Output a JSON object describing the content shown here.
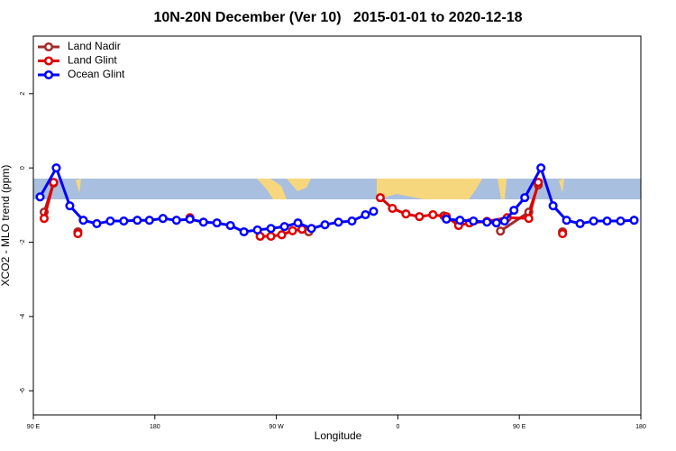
{
  "chart_data": {
    "type": "line",
    "title": "10N-20N December (Ver 10)   2015-01-01 to 2020-12-18",
    "xlabel": "Longitude",
    "ylabel": "XCO2 - MLO trend (ppm)",
    "xlim": [
      90,
      540
    ],
    "xticks": [
      {
        "value": 90,
        "label": "90 E"
      },
      {
        "value": 180,
        "label": "180"
      },
      {
        "value": 270,
        "label": "90 W"
      },
      {
        "value": 360,
        "label": "0"
      },
      {
        "value": 450,
        "label": "90 E"
      },
      {
        "value": 540,
        "label": "180"
      }
    ],
    "ylim": [
      -6.65,
      3.55
    ],
    "yticks": [
      -6,
      -4,
      -2,
      0,
      2
    ],
    "legend": "top-left",
    "series": [
      {
        "name": "Land Nadir",
        "color": "#a52a2a",
        "x": [
          98,
          105,
          null,
          123,
          null,
          294,
          null,
          394,
          null,
          436,
          457,
          464,
          null,
          482
        ],
        "values": [
          -1.19,
          -0.41,
          null,
          -1.72,
          null,
          -1.72,
          null,
          -1.29,
          null,
          -1.7,
          -1.19,
          -0.46,
          null,
          -1.72
        ]
      },
      {
        "name": "Land Glint",
        "color": "#e00000",
        "x": [
          98,
          105,
          null,
          123,
          null,
          206,
          null,
          258,
          266,
          274,
          282,
          289,
          null,
          347,
          356,
          366,
          376,
          386,
          396,
          405,
          413,
          426,
          441,
          457,
          464,
          null,
          482
        ],
        "values": [
          -1.36,
          -0.39,
          null,
          -1.77,
          null,
          -1.34,
          null,
          -1.84,
          -1.84,
          -1.8,
          -1.69,
          -1.65,
          null,
          -0.8,
          -1.09,
          -1.24,
          -1.31,
          -1.26,
          -1.31,
          -1.55,
          -1.48,
          -1.44,
          -1.34,
          -1.36,
          -0.39,
          null,
          -1.77
        ]
      },
      {
        "name": "Ocean Glint",
        "color": "#0000ff",
        "x": [
          95,
          107,
          117,
          127,
          137,
          147,
          157,
          167,
          176,
          186,
          196,
          206,
          216,
          226,
          236,
          246,
          256,
          266,
          276,
          286,
          296,
          306,
          316,
          326,
          336,
          342,
          null,
          396,
          406,
          416,
          426,
          433,
          439,
          446,
          454,
          466,
          475,
          485,
          495,
          505,
          515,
          525,
          535
        ],
        "values": [
          -0.78,
          0,
          -1.02,
          -1.41,
          -1.5,
          -1.43,
          -1.43,
          -1.41,
          -1.41,
          -1.36,
          -1.41,
          -1.38,
          -1.46,
          -1.48,
          -1.55,
          -1.72,
          -1.67,
          -1.63,
          -1.58,
          -1.48,
          -1.63,
          -1.53,
          -1.46,
          -1.43,
          -1.26,
          -1.17,
          null,
          -1.38,
          -1.41,
          -1.43,
          -1.46,
          -1.48,
          -1.43,
          -1.14,
          -0.8,
          0,
          -1.02,
          -1.41,
          -1.5,
          -1.43,
          -1.43,
          -1.43,
          -1.41
        ]
      }
    ]
  }
}
